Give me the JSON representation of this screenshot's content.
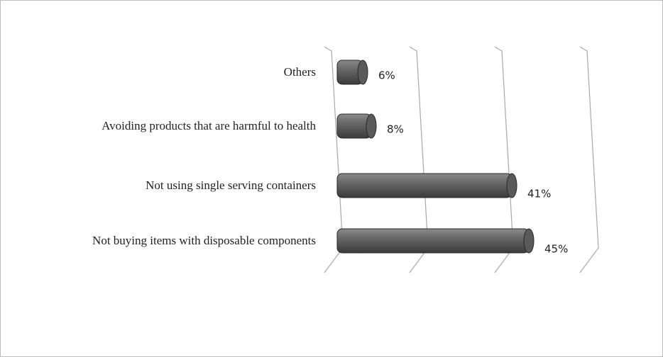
{
  "chart_data": {
    "type": "bar",
    "orientation": "horizontal",
    "categories": [
      "Others",
      "Avoiding products that are harmful to health",
      "Not using single serving containers",
      "Not buying items with disposable components"
    ],
    "values": [
      6,
      8,
      41,
      45
    ],
    "value_labels": [
      "6%",
      "8%",
      "41%",
      "45%"
    ],
    "color": "#5a5a5a",
    "xlim": [
      0,
      60
    ],
    "xticks": [
      0,
      20,
      40,
      60
    ],
    "grid": true
  }
}
